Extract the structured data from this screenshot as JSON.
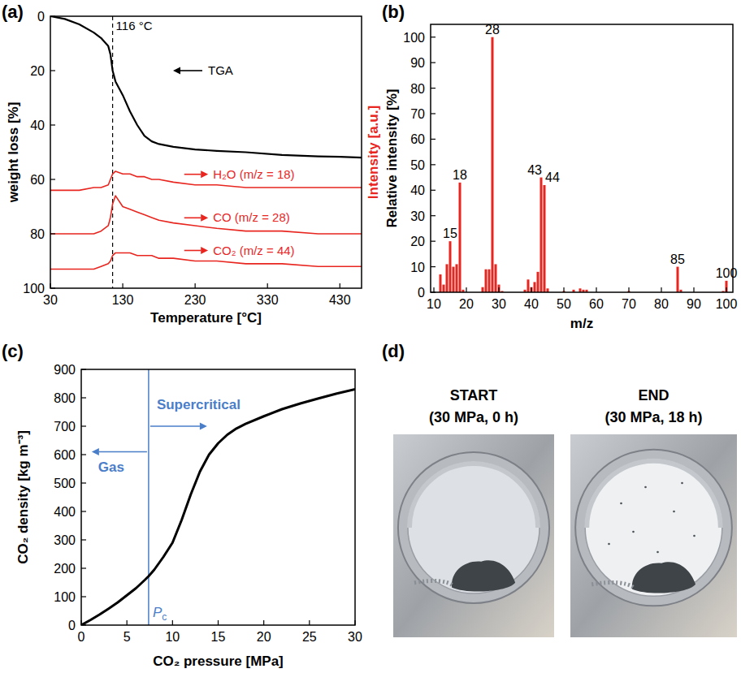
{
  "chart_data": [
    {
      "type": "line",
      "panel_label": "(a)",
      "xlabel": "Temperature [°C]",
      "ylabel": "weight loss [%]",
      "y2label": "Intensity [a.u.]",
      "x": [
        30,
        50,
        70,
        90,
        100,
        110,
        113,
        116,
        120,
        130,
        140,
        150,
        160,
        170,
        180,
        200,
        230,
        260,
        300,
        350,
        400,
        430,
        460
      ],
      "xlim": [
        30,
        460
      ],
      "xticks": [
        30,
        130,
        230,
        330,
        430
      ],
      "ylim": [
        100,
        0
      ],
      "yticks": [
        0,
        20,
        40,
        60,
        80,
        100
      ],
      "y2lim": [
        0,
        100
      ],
      "series": [
        {
          "name": "TGA",
          "color": "#000000",
          "values": [
            0,
            1,
            3,
            6,
            8,
            11,
            14,
            20,
            24,
            29,
            35,
            40,
            44,
            46,
            47,
            48,
            49,
            49.5,
            50,
            51,
            51.5,
            51.7,
            52
          ]
        },
        {
          "name": "H₂O (m/z = 18)",
          "color": "#e8261f",
          "axis": "y2",
          "values": [
            36,
            36,
            36,
            37,
            37,
            38,
            40,
            42,
            43,
            42,
            42,
            41,
            41,
            40,
            40,
            39,
            38,
            38,
            37,
            37,
            37,
            37,
            37
          ]
        },
        {
          "name": "CO (m/z = 28)",
          "color": "#e8261f",
          "axis": "y2",
          "values": [
            20,
            20,
            20,
            20,
            21,
            23,
            26,
            31,
            34,
            30,
            29,
            28,
            27,
            26,
            25,
            24,
            23,
            22,
            21,
            21,
            20,
            20,
            20
          ]
        },
        {
          "name": "CO₂ (m/z = 44)",
          "color": "#e8261f",
          "axis": "y2",
          "values": [
            7,
            7,
            7,
            7,
            8,
            9,
            10,
            12,
            13,
            13,
            13,
            12,
            12,
            12,
            11,
            11,
            10,
            10,
            9,
            9,
            8,
            8,
            8
          ]
        }
      ],
      "annotations": [
        {
          "x": 116,
          "text": "116 °C",
          "line_style": "dashed"
        }
      ]
    },
    {
      "type": "bar",
      "panel_label": "(b)",
      "xlabel": "m/z",
      "ylabel": "Relative intensity [%]",
      "x": [
        12,
        13,
        14,
        15,
        16,
        17,
        18,
        19,
        25,
        26,
        27,
        28,
        29,
        30,
        31,
        38,
        39,
        40,
        41,
        42,
        43,
        44,
        45,
        50,
        53,
        55,
        56,
        57,
        70,
        85,
        86,
        99,
        100
      ],
      "values": [
        7,
        3,
        11,
        20,
        10,
        11,
        43,
        1,
        2,
        9,
        9,
        100,
        11,
        3,
        0.5,
        1,
        5,
        2,
        4,
        8,
        45,
        42,
        1.5,
        0.5,
        1,
        1.5,
        1,
        1,
        0.5,
        10,
        1,
        0.5,
        4.5
      ],
      "color": "#e8261f",
      "xlim": [
        9,
        102
      ],
      "xticks": [
        10,
        20,
        30,
        40,
        50,
        60,
        70,
        80,
        90,
        100
      ],
      "ylim": [
        0,
        105
      ],
      "yticks": [
        0,
        10,
        20,
        30,
        40,
        50,
        60,
        70,
        80,
        90,
        100
      ],
      "annotations": [
        15,
        18,
        28,
        43,
        44,
        85,
        100
      ]
    },
    {
      "type": "line",
      "panel_label": "(c)",
      "xlabel": "CO₂ pressure [MPa]",
      "ylabel": "CO₂ density [kg m⁻³]",
      "x": [
        0,
        1,
        2,
        3,
        4,
        5,
        6,
        7,
        7.38,
        8,
        9,
        10,
        11,
        12,
        13,
        14,
        15,
        16,
        17,
        18,
        20,
        22,
        24,
        26,
        28,
        30
      ],
      "values": [
        0,
        18,
        37,
        58,
        80,
        105,
        130,
        160,
        172,
        195,
        240,
        290,
        370,
        460,
        540,
        600,
        640,
        670,
        692,
        708,
        735,
        760,
        780,
        798,
        815,
        830
      ],
      "color": "#000000",
      "xlim": [
        0,
        30
      ],
      "xticks": [
        0,
        5,
        10,
        15,
        20,
        25,
        30
      ],
      "ylim": [
        0,
        900
      ],
      "yticks": [
        0,
        100,
        200,
        300,
        400,
        500,
        600,
        700,
        800,
        900
      ],
      "annotations": [
        {
          "x": 7.38,
          "text": "Pc",
          "color": "#4a7ec9"
        },
        {
          "text": "Supercritical",
          "color": "#4a7ec9"
        },
        {
          "text": "Gas",
          "color": "#4a7ec9"
        }
      ]
    }
  ],
  "photos": {
    "panel_label": "(d)",
    "images": [
      {
        "title": "START",
        "subtitle": "(30 MPa, 0 h)"
      },
      {
        "title": "END",
        "subtitle": "(30 MPa, 18 h)"
      }
    ]
  }
}
